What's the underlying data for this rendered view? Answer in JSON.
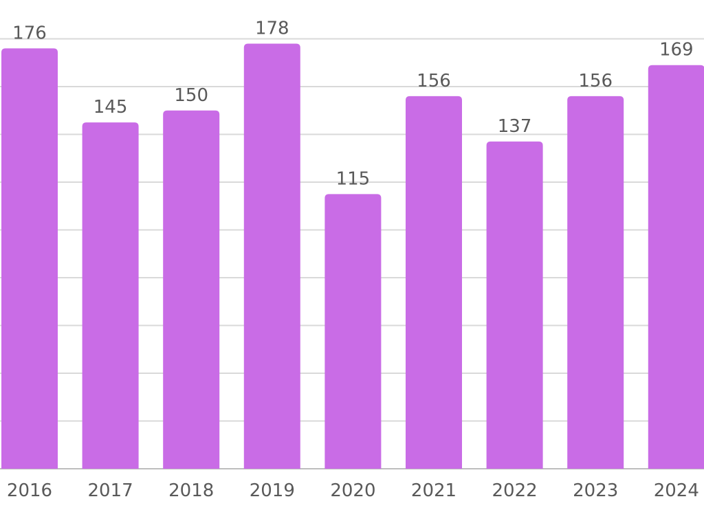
{
  "chart_data": {
    "type": "bar",
    "title": "",
    "xlabel": "",
    "ylabel": "",
    "categories": [
      "2016",
      "2017",
      "2018",
      "2019",
      "2020",
      "2021",
      "2022",
      "2023",
      "2024"
    ],
    "values": [
      176,
      145,
      150,
      178,
      115,
      156,
      137,
      156,
      169
    ],
    "data_labels": [
      "176",
      "145",
      "150",
      "178",
      "115",
      "156",
      "137",
      "156",
      "169"
    ],
    "ylim": [
      0,
      180
    ],
    "gridlines": [
      20,
      40,
      60,
      80,
      100,
      120,
      140,
      160,
      180
    ],
    "grid": true,
    "legend": "none",
    "colors": {
      "bar": "#c96ce6",
      "grid": "#d9d9d9",
      "text": "#595959"
    }
  }
}
